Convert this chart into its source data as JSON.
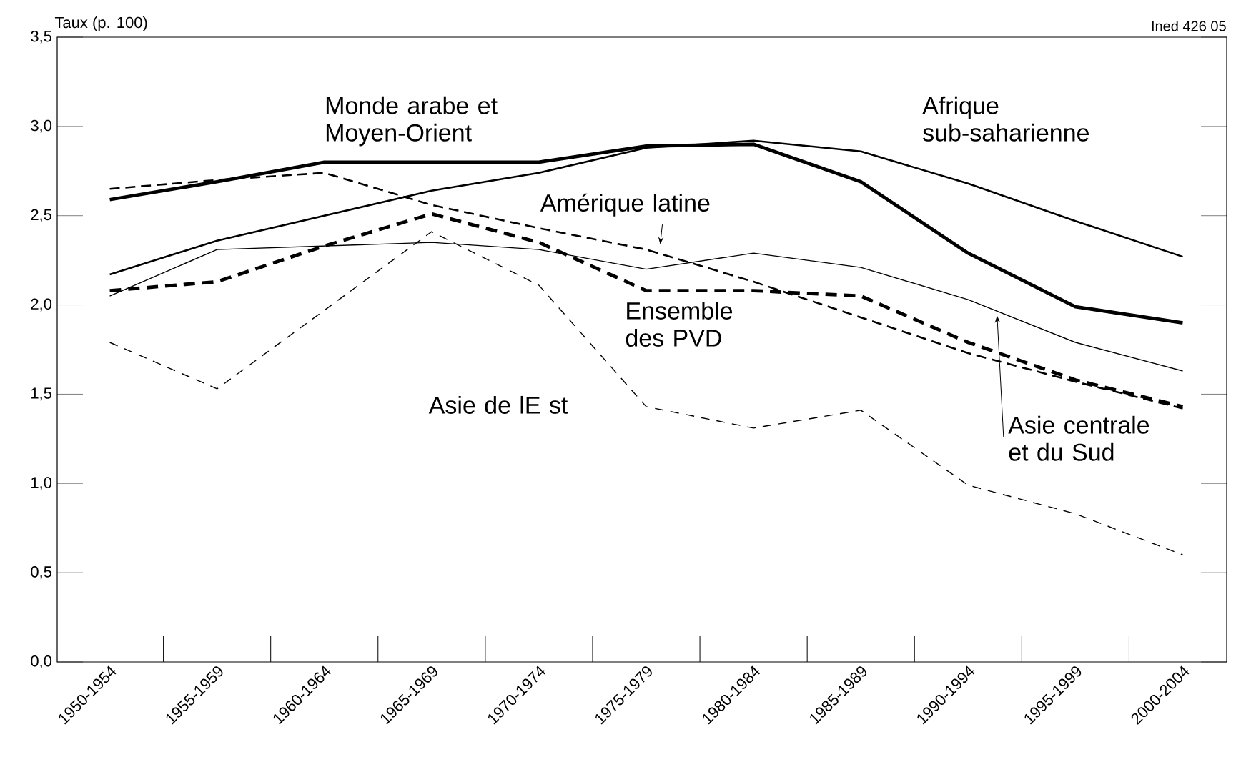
{
  "chart_data": {
    "type": "line",
    "ylabel": "Taux (p. 100)",
    "annotations": [
      "Ined 426 05"
    ],
    "categories": [
      "1950-1954",
      "1955-1959",
      "1960-1964",
      "1965-1969",
      "1970-1974",
      "1975-1979",
      "1980-1984",
      "1985-1989",
      "1990-1994",
      "1995-1999",
      "2000-2004"
    ],
    "series": [
      {
        "name": "Monde arabe et Moyen-Orient",
        "color": "#000000",
        "line_style": "solid",
        "values": [
          2.59,
          2.69,
          2.8,
          2.8,
          2.8,
          2.89,
          2.9,
          2.69,
          2.29,
          1.99,
          1.9
        ]
      },
      {
        "name": "Afrique sub-saharienne",
        "color": "#000000",
        "line_style": "solid",
        "values": [
          2.17,
          2.36,
          2.5,
          2.64,
          2.74,
          2.88,
          2.92,
          2.86,
          2.68,
          2.47,
          2.27
        ]
      },
      {
        "name": "Amérique latine",
        "color": "#000000",
        "line_style": "dashed",
        "values": [
          2.65,
          2.7,
          2.74,
          2.56,
          2.43,
          2.31,
          2.13,
          1.93,
          1.73,
          1.57,
          1.42
        ]
      },
      {
        "name": "Ensemble des PVD",
        "color": "#000000",
        "line_style": "dashed",
        "values": [
          2.08,
          2.13,
          2.33,
          2.51,
          2.35,
          2.08,
          2.08,
          2.05,
          1.79,
          1.58,
          1.43
        ]
      },
      {
        "name": "Asie centrale et du Sud",
        "color": "#000000",
        "line_style": "solid",
        "values": [
          2.05,
          2.31,
          2.33,
          2.35,
          2.31,
          2.2,
          2.29,
          2.21,
          2.03,
          1.79,
          1.63
        ]
      },
      {
        "name": "Asie de lE st",
        "color": "#000000",
        "line_style": "dashed",
        "values": [
          1.79,
          1.53,
          1.97,
          2.41,
          2.11,
          1.43,
          1.31,
          1.41,
          0.99,
          0.83,
          0.6
        ]
      }
    ],
    "ylim": [
      0,
      3.5
    ],
    "yticks": [
      {
        "value": 0,
        "label": "0,0"
      },
      {
        "value": 0.5,
        "label": "0,5"
      },
      {
        "value": 1,
        "label": "1,0"
      },
      {
        "value": 1.5,
        "label": "1,5"
      },
      {
        "value": 2,
        "label": "2,0"
      },
      {
        "value": 2.5,
        "label": "2,5"
      },
      {
        "value": 3,
        "label": "3,0"
      },
      {
        "value": 3.5,
        "label": "3,5"
      }
    ],
    "grid": false,
    "legend": false,
    "marker": "none"
  }
}
